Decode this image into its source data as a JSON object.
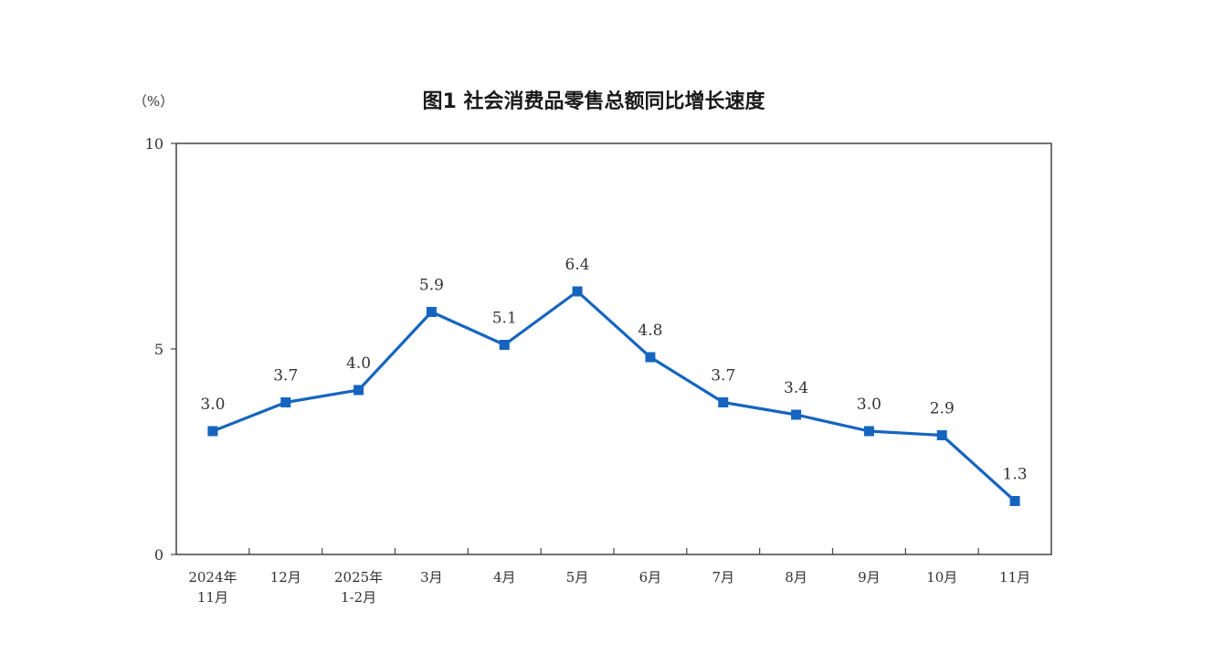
{
  "chart_data": {
    "type": "line",
    "title": "图1  社会消费品零售总额同比增长速度",
    "ylabel": "（%）",
    "xlabel": "",
    "ylim": [
      0,
      10
    ],
    "yticks": [
      "0",
      "5",
      "10"
    ],
    "grid": false,
    "categories": [
      [
        "2024年",
        "11月"
      ],
      [
        "12月"
      ],
      [
        "2025年",
        "1-2月"
      ],
      [
        "3月"
      ],
      [
        "4月"
      ],
      [
        "5月"
      ],
      [
        "6月"
      ],
      [
        "7月"
      ],
      [
        "8月"
      ],
      [
        "9月"
      ],
      [
        "10月"
      ],
      [
        "11月"
      ]
    ],
    "series": [
      {
        "values": [
          3.0,
          3.7,
          4.0,
          5.9,
          5.1,
          6.4,
          4.8,
          3.7,
          3.4,
          3.0,
          2.9,
          1.3
        ],
        "labels": [
          "3.0",
          "3.7",
          "4.0",
          "5.9",
          "5.1",
          "6.4",
          "4.8",
          "3.7",
          "3.4",
          "3.0",
          "2.9",
          "1.3"
        ]
      }
    ],
    "line_color": "#1565c0"
  }
}
